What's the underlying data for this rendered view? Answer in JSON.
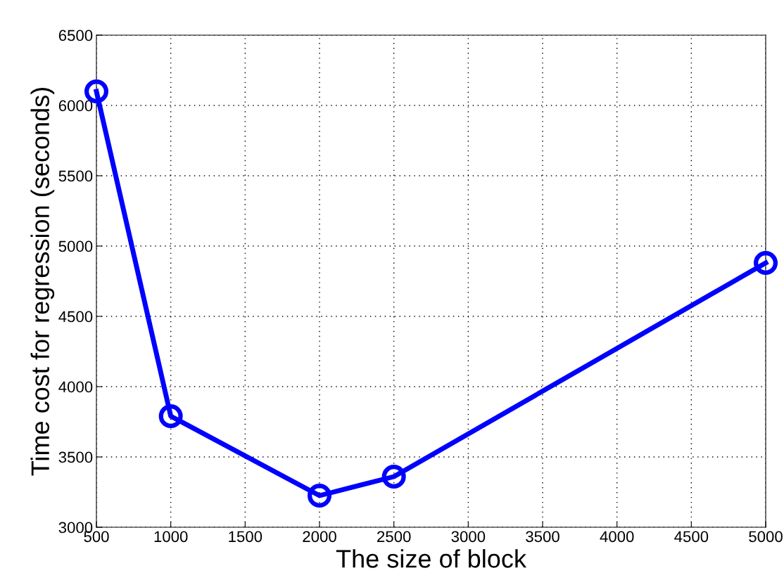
{
  "chart_data": {
    "type": "line",
    "xlabel": "The size of block",
    "ylabel": "Time cost for regression (seconds)",
    "x": [
      500,
      1000,
      2000,
      2500,
      5000
    ],
    "series": [
      {
        "color": "#0000ff",
        "values": [
          6100,
          3790,
          3225,
          3360,
          4880
        ]
      }
    ],
    "xlim": [
      500,
      5000
    ],
    "xticks": [
      500,
      1000,
      1500,
      2000,
      2500,
      3000,
      3500,
      4000,
      4500,
      5000
    ],
    "ylim": [
      3000,
      6500
    ],
    "yticks": [
      3000,
      3500,
      4000,
      4500,
      5000,
      5500,
      6000,
      6500
    ],
    "grid": true,
    "marker": "circle",
    "line_style": "solid"
  }
}
